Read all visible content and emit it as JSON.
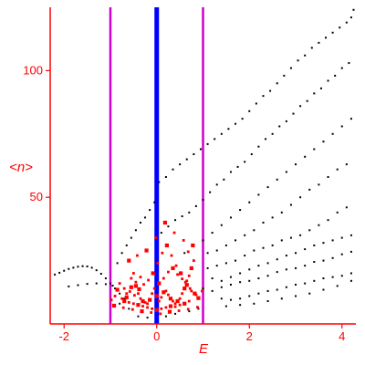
{
  "chart_data": {
    "type": "scatter",
    "title": "",
    "xlabel": "E",
    "ylabel": "<n>",
    "xlim": [
      -2.3,
      4.3
    ],
    "ylim": [
      0,
      125
    ],
    "x_ticks": [
      {
        "value": -2,
        "label": "-2"
      },
      {
        "value": 0,
        "label": "0"
      },
      {
        "value": 2,
        "label": "2"
      },
      {
        "value": 4,
        "label": "4"
      }
    ],
    "y_ticks": [
      {
        "value": 50,
        "label": "50"
      },
      {
        "value": 100,
        "label": "100"
      }
    ],
    "grid": false,
    "colors": {
      "axis": "#ff0000",
      "black_series": "#000000",
      "red_series": "#ff0000",
      "center_line": "#0000ff",
      "side_lines": "#cc00cc"
    },
    "vertical_lines": [
      {
        "x": -1.0,
        "color": "#cc00cc"
      },
      {
        "x": 0.0,
        "color": "#0000ff"
      },
      {
        "x": 1.0,
        "color": "#cc00cc"
      }
    ],
    "series": [
      {
        "marker_color": "#000000",
        "description_kind": "sparse black points",
        "points": [
          [
            -2.2,
            19.5
          ],
          [
            -2.1,
            20.2
          ],
          [
            -2.0,
            21.0
          ],
          [
            -1.9,
            21.7
          ],
          [
            -1.8,
            22.2
          ],
          [
            -1.7,
            22.6
          ],
          [
            -1.6,
            22.8
          ],
          [
            -1.5,
            22.7
          ],
          [
            -1.4,
            22.2
          ],
          [
            -1.3,
            21.2
          ],
          [
            -1.2,
            19.8
          ],
          [
            -1.1,
            18.0
          ],
          [
            -1.0,
            16.0
          ],
          [
            -0.9,
            14.0
          ],
          [
            -0.8,
            12.0
          ],
          [
            -0.7,
            10.0
          ],
          [
            -1.9,
            14.8
          ],
          [
            -1.7,
            15.3
          ],
          [
            -1.5,
            15.8
          ],
          [
            -1.3,
            16.0
          ],
          [
            -1.1,
            15.7
          ],
          [
            -0.95,
            15.1
          ],
          [
            -0.85,
            24.0
          ],
          [
            -0.75,
            28.0
          ],
          [
            -0.65,
            31.0
          ],
          [
            -0.55,
            34.0
          ],
          [
            -0.45,
            37.0
          ],
          [
            -0.35,
            40.0
          ],
          [
            -0.25,
            42.0
          ],
          [
            -0.15,
            45.0
          ],
          [
            -0.05,
            48.0
          ],
          [
            0.05,
            56.0
          ],
          [
            0.2,
            58.0
          ],
          [
            0.35,
            61.0
          ],
          [
            0.5,
            63.0
          ],
          [
            0.65,
            65.0
          ],
          [
            0.8,
            67.0
          ],
          [
            0.95,
            69.0
          ],
          [
            1.1,
            71.0
          ],
          [
            1.25,
            73.0
          ],
          [
            1.4,
            75.0
          ],
          [
            1.55,
            77.0
          ],
          [
            1.7,
            79.0
          ],
          [
            1.85,
            81.0
          ],
          [
            2.0,
            84.0
          ],
          [
            2.15,
            87.0
          ],
          [
            2.3,
            90.0
          ],
          [
            2.45,
            92.0
          ],
          [
            2.6,
            95.0
          ],
          [
            2.75,
            98.0
          ],
          [
            2.9,
            101.0
          ],
          [
            3.05,
            104.0
          ],
          [
            3.2,
            106.0
          ],
          [
            3.35,
            109.0
          ],
          [
            3.5,
            111.0
          ],
          [
            3.65,
            113.0
          ],
          [
            3.8,
            115.0
          ],
          [
            3.95,
            117.0
          ],
          [
            4.1,
            119.0
          ],
          [
            4.2,
            121.0
          ],
          [
            4.25,
            124.0
          ],
          [
            0.1,
            36.0
          ],
          [
            0.25,
            38.5
          ],
          [
            0.4,
            41.0
          ],
          [
            0.55,
            42.5
          ],
          [
            0.7,
            44.0
          ],
          [
            0.85,
            46.5
          ],
          [
            1.0,
            49.0
          ],
          [
            1.15,
            52.0
          ],
          [
            1.3,
            55.0
          ],
          [
            1.45,
            57.0
          ],
          [
            1.6,
            60.0
          ],
          [
            1.75,
            62.0
          ],
          [
            1.9,
            64.0
          ],
          [
            2.05,
            67.0
          ],
          [
            2.2,
            70.0
          ],
          [
            2.35,
            73.0
          ],
          [
            2.5,
            75.0
          ],
          [
            2.65,
            78.0
          ],
          [
            2.8,
            80.0
          ],
          [
            2.95,
            83.0
          ],
          [
            3.1,
            86.0
          ],
          [
            3.25,
            88.0
          ],
          [
            3.4,
            91.0
          ],
          [
            3.55,
            93.0
          ],
          [
            3.7,
            96.0
          ],
          [
            3.85,
            98.0
          ],
          [
            4.0,
            101.0
          ],
          [
            4.15,
            103.0
          ],
          [
            0.6,
            28.0
          ],
          [
            0.8,
            31.0
          ],
          [
            1.0,
            33.0
          ],
          [
            1.2,
            36.0
          ],
          [
            1.4,
            39.0
          ],
          [
            1.6,
            42.0
          ],
          [
            1.8,
            45.0
          ],
          [
            2.0,
            48.0
          ],
          [
            2.2,
            51.0
          ],
          [
            2.4,
            54.0
          ],
          [
            2.6,
            57.0
          ],
          [
            2.8,
            60.0
          ],
          [
            3.0,
            63.0
          ],
          [
            3.2,
            66.0
          ],
          [
            3.4,
            69.0
          ],
          [
            3.6,
            72.0
          ],
          [
            3.8,
            75.0
          ],
          [
            4.0,
            78.0
          ],
          [
            4.2,
            81.0
          ],
          [
            1.1,
            28.0
          ],
          [
            1.3,
            29.0
          ],
          [
            1.5,
            31.0
          ],
          [
            1.7,
            33.0
          ],
          [
            1.9,
            35.0
          ],
          [
            2.1,
            37.0
          ],
          [
            2.3,
            40.0
          ],
          [
            2.5,
            42.0
          ],
          [
            2.7,
            44.0
          ],
          [
            2.9,
            47.0
          ],
          [
            3.1,
            50.0
          ],
          [
            3.3,
            53.0
          ],
          [
            3.5,
            55.0
          ],
          [
            3.7,
            58.0
          ],
          [
            3.9,
            61.0
          ],
          [
            4.1,
            63.0
          ],
          [
            1.1,
            22.0
          ],
          [
            1.3,
            23.0
          ],
          [
            1.5,
            24.0
          ],
          [
            1.7,
            25.0
          ],
          [
            1.9,
            27.0
          ],
          [
            2.1,
            29.0
          ],
          [
            2.3,
            30.0
          ],
          [
            2.5,
            31.0
          ],
          [
            2.7,
            33.0
          ],
          [
            2.9,
            34.0
          ],
          [
            3.1,
            35.0
          ],
          [
            3.3,
            37.0
          ],
          [
            3.5,
            39.0
          ],
          [
            3.7,
            41.0
          ],
          [
            3.9,
            44.0
          ],
          [
            4.1,
            46.0
          ],
          [
            1.2,
            18.0
          ],
          [
            1.4,
            17.0
          ],
          [
            1.6,
            18.5
          ],
          [
            1.8,
            20.0
          ],
          [
            2.0,
            21.5
          ],
          [
            2.2,
            23.0
          ],
          [
            2.4,
            24.0
          ],
          [
            2.6,
            25.5
          ],
          [
            2.8,
            27.0
          ],
          [
            3.0,
            28.0
          ],
          [
            3.2,
            29.5
          ],
          [
            3.4,
            31.0
          ],
          [
            3.6,
            32.0
          ],
          [
            3.8,
            33.0
          ],
          [
            4.0,
            34.0
          ],
          [
            4.2,
            35.0
          ],
          [
            1.0,
            14.0
          ],
          [
            1.2,
            13.0
          ],
          [
            1.4,
            14.5
          ],
          [
            1.6,
            15.5
          ],
          [
            1.8,
            16.5
          ],
          [
            2.0,
            17.0
          ],
          [
            2.2,
            18.0
          ],
          [
            2.4,
            19.0
          ],
          [
            2.6,
            20.5
          ],
          [
            2.8,
            21.5
          ],
          [
            3.0,
            22.0
          ],
          [
            3.2,
            23.0
          ],
          [
            3.4,
            24.5
          ],
          [
            3.6,
            25.0
          ],
          [
            3.8,
            26.0
          ],
          [
            4.0,
            27.5
          ],
          [
            4.2,
            28.5
          ],
          [
            1.4,
            10.0
          ],
          [
            1.6,
            9.5
          ],
          [
            1.8,
            10.0
          ],
          [
            2.0,
            11.0
          ],
          [
            2.2,
            12.0
          ],
          [
            2.4,
            13.0
          ],
          [
            2.6,
            13.5
          ],
          [
            2.8,
            14.5
          ],
          [
            3.0,
            15.5
          ],
          [
            3.2,
            16.0
          ],
          [
            3.4,
            17.0
          ],
          [
            3.6,
            18.0
          ],
          [
            3.8,
            18.5
          ],
          [
            4.0,
            19.0
          ],
          [
            4.2,
            20.0
          ],
          [
            1.5,
            7.0
          ],
          [
            1.8,
            7.5
          ],
          [
            2.1,
            8.0
          ],
          [
            2.4,
            9.0
          ],
          [
            2.7,
            10.0
          ],
          [
            3.0,
            11.0
          ],
          [
            3.3,
            12.0
          ],
          [
            3.6,
            13.5
          ],
          [
            3.9,
            15.0
          ],
          [
            4.2,
            17.0
          ],
          [
            -0.4,
            3.0
          ],
          [
            -0.2,
            2.5
          ],
          [
            0.2,
            3.0
          ],
          [
            0.4,
            4.0
          ],
          [
            0.7,
            5.0
          ],
          [
            0.9,
            6.0
          ],
          [
            -0.6,
            6.0
          ],
          [
            -0.8,
            8.0
          ]
        ]
      },
      {
        "marker_color": "#ff0000",
        "description_kind": "dense red points near zero",
        "points": [
          [
            -0.6,
            25.0
          ],
          [
            -0.55,
            18.0
          ],
          [
            -0.5,
            20.0
          ],
          [
            -0.45,
            15.0
          ],
          [
            -0.4,
            12.0
          ],
          [
            -0.35,
            10.0
          ],
          [
            -0.3,
            9.0
          ],
          [
            -0.25,
            8.5
          ],
          [
            -0.2,
            8.0
          ],
          [
            -0.15,
            9.5
          ],
          [
            -0.1,
            12.0
          ],
          [
            -0.05,
            14.0
          ],
          [
            0.0,
            11.0
          ],
          [
            0.05,
            9.0
          ],
          [
            0.1,
            10.5
          ],
          [
            0.15,
            12.5
          ],
          [
            0.2,
            13.0
          ],
          [
            0.25,
            11.5
          ],
          [
            0.3,
            10.0
          ],
          [
            0.35,
            9.0
          ],
          [
            0.4,
            8.0
          ],
          [
            0.45,
            9.0
          ],
          [
            0.5,
            10.0
          ],
          [
            0.55,
            12.0
          ],
          [
            0.6,
            14.0
          ],
          [
            0.65,
            17.0
          ],
          [
            0.7,
            19.0
          ],
          [
            0.75,
            22.0
          ],
          [
            0.8,
            25.0
          ],
          [
            -0.8,
            16.0
          ],
          [
            -0.85,
            13.5
          ],
          [
            -0.9,
            11.0
          ],
          [
            -0.7,
            14.0
          ],
          [
            -0.65,
            10.5
          ],
          [
            -0.58,
            12.8
          ],
          [
            -0.48,
            11.3
          ],
          [
            -0.38,
            13.7
          ],
          [
            -0.28,
            15.6
          ],
          [
            -0.18,
            17.3
          ],
          [
            -0.08,
            20.0
          ],
          [
            0.02,
            24.0
          ],
          [
            0.12,
            28.0
          ],
          [
            0.22,
            31.0
          ],
          [
            0.32,
            27.0
          ],
          [
            0.42,
            23.0
          ],
          [
            0.52,
            20.0
          ],
          [
            0.62,
            16.5
          ],
          [
            0.72,
            14.0
          ],
          [
            0.82,
            12.0
          ],
          [
            -0.2,
            6.5
          ],
          [
            -0.1,
            6.0
          ],
          [
            0.0,
            5.5
          ],
          [
            0.1,
            6.0
          ],
          [
            0.2,
            6.5
          ],
          [
            0.3,
            7.0
          ],
          [
            0.4,
            6.8
          ],
          [
            0.5,
            7.5
          ],
          [
            0.6,
            8.0
          ],
          [
            0.7,
            9.0
          ],
          [
            -0.3,
            7.0
          ],
          [
            -0.4,
            7.5
          ],
          [
            -0.5,
            8.0
          ],
          [
            -0.6,
            8.5
          ],
          [
            -0.7,
            9.0
          ],
          [
            -0.75,
            10.0
          ],
          [
            -0.65,
            12.0
          ],
          [
            -0.55,
            14.5
          ],
          [
            -0.45,
            16.5
          ],
          [
            -0.35,
            18.5
          ],
          [
            0.05,
            16.0
          ],
          [
            0.15,
            18.0
          ],
          [
            0.25,
            20.5
          ],
          [
            0.35,
            22.0
          ],
          [
            0.45,
            19.5
          ],
          [
            0.55,
            17.8
          ],
          [
            0.65,
            15.4
          ],
          [
            0.75,
            13.0
          ],
          [
            0.85,
            11.5
          ],
          [
            0.9,
            10.2
          ],
          [
            -0.12,
            4.5
          ],
          [
            0.08,
            4.0
          ],
          [
            0.28,
            4.8
          ],
          [
            0.48,
            5.2
          ],
          [
            0.68,
            5.8
          ],
          [
            -0.32,
            5.0
          ],
          [
            -0.52,
            5.7
          ],
          [
            -0.72,
            6.4
          ],
          [
            -0.92,
            7.2
          ],
          [
            0.88,
            6.6
          ],
          [
            -0.02,
            34.0
          ],
          [
            0.18,
            40.0
          ],
          [
            0.38,
            36.0
          ],
          [
            0.58,
            33.0
          ],
          [
            -0.22,
            29.0
          ],
          [
            -0.42,
            27.0
          ],
          [
            0.68,
            28.5
          ],
          [
            0.78,
            31.0
          ],
          [
            0.98,
            13.0
          ],
          [
            -0.98,
            9.5
          ]
        ]
      }
    ]
  }
}
